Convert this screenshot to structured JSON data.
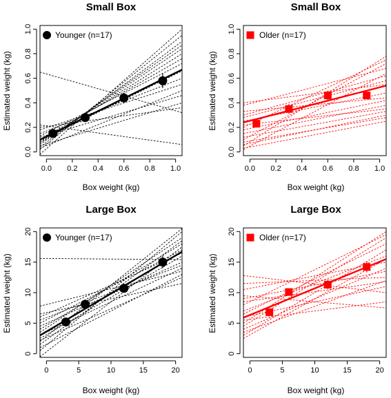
{
  "chart_data": [
    {
      "type": "scatter",
      "title": "Small Box",
      "xlabel": "Box weight (kg)",
      "ylabel": "Estimated weight (kg)",
      "xlim": [
        -0.05,
        1.05
      ],
      "ylim": [
        -0.03,
        1.03
      ],
      "xticks": [
        "0.0",
        "0.2",
        "0.4",
        "0.6",
        "0.8",
        "1.0"
      ],
      "yticks": [
        "0.0",
        "0.2",
        "0.4",
        "0.6",
        "0.8",
        "1.0"
      ],
      "xtick_values": [
        0,
        0.2,
        0.4,
        0.6,
        0.8,
        1.0
      ],
      "ytick_values": [
        0,
        0.2,
        0.4,
        0.6,
        0.8,
        1.0
      ],
      "color": "#000000",
      "marker": "circle",
      "legend": "Younger (n=17)",
      "legend_position": "top-left",
      "series": [
        {
          "name": "Younger (n=17)",
          "x": [
            0.05,
            0.3,
            0.6,
            0.9
          ],
          "y": [
            0.15,
            0.28,
            0.44,
            0.58
          ],
          "err": [
            0.03,
            0.03,
            0.04,
            0.06
          ]
        }
      ],
      "fit": [
        [
          -0.05,
          0.1
        ],
        [
          1.05,
          0.67
        ]
      ],
      "individual_fits": [
        [
          [
            -0.05,
            0.65
          ],
          [
            1.05,
            0.32
          ]
        ],
        [
          [
            -0.05,
            0.22
          ],
          [
            1.05,
            0.06
          ]
        ],
        [
          [
            -0.05,
            0.12
          ],
          [
            1.05,
            0.46
          ]
        ],
        [
          [
            -0.05,
            0.2
          ],
          [
            1.05,
            0.36
          ]
        ],
        [
          [
            -0.05,
            0.05
          ],
          [
            1.05,
            0.4
          ]
        ],
        [
          [
            -0.05,
            0.02
          ],
          [
            1.05,
            0.95
          ]
        ],
        [
          [
            -0.05,
            -0.02
          ],
          [
            1.05,
            1.0
          ]
        ],
        [
          [
            -0.05,
            0.06
          ],
          [
            1.05,
            0.87
          ]
        ],
        [
          [
            -0.05,
            0.08
          ],
          [
            1.05,
            0.8
          ]
        ],
        [
          [
            -0.05,
            0.1
          ],
          [
            1.05,
            0.76
          ]
        ],
        [
          [
            -0.05,
            0.04
          ],
          [
            1.05,
            0.9
          ]
        ],
        [
          [
            -0.05,
            0.13
          ],
          [
            1.05,
            0.72
          ]
        ],
        [
          [
            -0.05,
            0.15
          ],
          [
            1.05,
            0.6
          ]
        ],
        [
          [
            -0.05,
            0.07
          ],
          [
            1.05,
            0.84
          ]
        ],
        [
          [
            -0.05,
            0.18
          ],
          [
            1.05,
            0.55
          ]
        ],
        [
          [
            -0.05,
            0.09
          ],
          [
            1.05,
            0.66
          ]
        ],
        [
          [
            -0.05,
            0.03
          ],
          [
            1.05,
            0.5
          ]
        ]
      ]
    },
    {
      "type": "scatter",
      "title": "Small Box",
      "xlabel": "Box weight (kg)",
      "ylabel": "Estimated weight (kg)",
      "xlim": [
        -0.05,
        1.05
      ],
      "ylim": [
        -0.03,
        1.03
      ],
      "xticks": [
        "0.0",
        "0.2",
        "0.4",
        "0.6",
        "0.8",
        "1.0"
      ],
      "yticks": [
        "0.0",
        "0.2",
        "0.4",
        "0.6",
        "0.8",
        "1.0"
      ],
      "xtick_values": [
        0,
        0.2,
        0.4,
        0.6,
        0.8,
        1.0
      ],
      "ytick_values": [
        0,
        0.2,
        0.4,
        0.6,
        0.8,
        1.0
      ],
      "color": "#ff0000",
      "marker": "square",
      "legend": "Older (n=17)",
      "legend_position": "top-left",
      "series": [
        {
          "name": "Older (n=17)",
          "x": [
            0.05,
            0.3,
            0.6,
            0.9
          ],
          "y": [
            0.23,
            0.35,
            0.46,
            0.46
          ],
          "err": [
            0.03,
            0.04,
            0.04,
            0.03
          ]
        }
      ],
      "fit": [
        [
          -0.05,
          0.24
        ],
        [
          1.05,
          0.54
        ]
      ],
      "individual_fits": [
        [
          [
            -0.05,
            0.05
          ],
          [
            1.05,
            0.78
          ]
        ],
        [
          [
            -0.05,
            0.1
          ],
          [
            1.05,
            0.72
          ]
        ],
        [
          [
            -0.05,
            0.02
          ],
          [
            1.05,
            0.64
          ]
        ],
        [
          [
            -0.05,
            0.2
          ],
          [
            1.05,
            0.75
          ]
        ],
        [
          [
            -0.05,
            0.3
          ],
          [
            1.05,
            0.62
          ]
        ],
        [
          [
            -0.05,
            0.38
          ],
          [
            1.05,
            0.68
          ]
        ],
        [
          [
            -0.05,
            0.4
          ],
          [
            1.05,
            0.55
          ]
        ],
        [
          [
            -0.05,
            0.15
          ],
          [
            1.05,
            0.38
          ]
        ],
        [
          [
            -0.05,
            0.12
          ],
          [
            1.05,
            0.33
          ]
        ],
        [
          [
            -0.05,
            0.18
          ],
          [
            1.05,
            0.42
          ]
        ],
        [
          [
            -0.05,
            0.22
          ],
          [
            1.05,
            0.35
          ]
        ],
        [
          [
            -0.05,
            0.08
          ],
          [
            1.05,
            0.28
          ]
        ],
        [
          [
            -0.05,
            0.25
          ],
          [
            1.05,
            0.48
          ]
        ],
        [
          [
            -0.05,
            0.06
          ],
          [
            1.05,
            0.3
          ]
        ],
        [
          [
            -0.05,
            0.28
          ],
          [
            1.05,
            0.58
          ]
        ],
        [
          [
            -0.05,
            0.03
          ],
          [
            1.05,
            0.25
          ]
        ],
        [
          [
            -0.05,
            0.33
          ],
          [
            1.05,
            0.44
          ]
        ]
      ]
    },
    {
      "type": "scatter",
      "title": "Large Box",
      "xlabel": "Box weight (kg)",
      "ylabel": "Estimated weight (kg)",
      "xlim": [
        -1,
        21
      ],
      "ylim": [
        -0.6,
        20.6
      ],
      "xticks": [
        "0",
        "5",
        "10",
        "15",
        "20"
      ],
      "yticks": [
        "0",
        "5",
        "10",
        "15",
        "20"
      ],
      "xtick_values": [
        0,
        5,
        10,
        15,
        20
      ],
      "ytick_values": [
        0,
        5,
        10,
        15,
        20
      ],
      "color": "#000000",
      "marker": "circle",
      "legend": "Younger (n=17)",
      "legend_position": "top-left",
      "series": [
        {
          "name": "Younger (n=17)",
          "x": [
            3,
            6,
            12,
            18
          ],
          "y": [
            5.2,
            8.1,
            10.7,
            15.0
          ],
          "err": [
            0.4,
            0.6,
            0.7,
            1.0
          ]
        }
      ],
      "fit": [
        [
          -1,
          3.0
        ],
        [
          21,
          16.7
        ]
      ],
      "individual_fits": [
        [
          [
            -1,
            15.6
          ],
          [
            21,
            15.4
          ]
        ],
        [
          [
            -1,
            7.8
          ],
          [
            21,
            13.5
          ]
        ],
        [
          [
            -1,
            6.5
          ],
          [
            21,
            11.5
          ]
        ],
        [
          [
            -1,
            5.5
          ],
          [
            21,
            14.5
          ]
        ],
        [
          [
            -1,
            4.0
          ],
          [
            21,
            18.0
          ]
        ],
        [
          [
            -1,
            2.0
          ],
          [
            21,
            20.5
          ]
        ],
        [
          [
            -1,
            0.5
          ],
          [
            21,
            20.0
          ]
        ],
        [
          [
            -1,
            -0.5
          ],
          [
            21,
            17.5
          ]
        ],
        [
          [
            -1,
            3.5
          ],
          [
            21,
            19.0
          ]
        ],
        [
          [
            -1,
            2.5
          ],
          [
            21,
            16.0
          ]
        ],
        [
          [
            -1,
            4.5
          ],
          [
            21,
            15.0
          ]
        ],
        [
          [
            -1,
            1.5
          ],
          [
            21,
            18.5
          ]
        ],
        [
          [
            -1,
            5.0
          ],
          [
            21,
            17.0
          ]
        ],
        [
          [
            -1,
            3.0
          ],
          [
            21,
            14.0
          ]
        ],
        [
          [
            -1,
            1.0
          ],
          [
            21,
            13.0
          ]
        ],
        [
          [
            -1,
            6.0
          ],
          [
            21,
            16.5
          ]
        ],
        [
          [
            -1,
            2.2
          ],
          [
            21,
            12.5
          ]
        ]
      ]
    },
    {
      "type": "scatter",
      "title": "Large Box",
      "xlabel": "Box weight (kg)",
      "ylabel": "Estimated weight (kg)",
      "xlim": [
        -1,
        21
      ],
      "ylim": [
        -0.6,
        20.6
      ],
      "xticks": [
        "0",
        "5",
        "10",
        "15",
        "20"
      ],
      "yticks": [
        "0",
        "5",
        "10",
        "15",
        "20"
      ],
      "xtick_values": [
        0,
        5,
        10,
        15,
        20
      ],
      "ytick_values": [
        0,
        5,
        10,
        15,
        20
      ],
      "color": "#ff0000",
      "marker": "square",
      "legend": "Older (n=17)",
      "legend_position": "top-left",
      "series": [
        {
          "name": "Older (n=17)",
          "x": [
            3,
            6,
            12,
            18
          ],
          "y": [
            6.8,
            10.1,
            11.3,
            14.2
          ],
          "err": [
            0.4,
            0.6,
            0.7,
            0.9
          ]
        }
      ],
      "fit": [
        [
          -1,
          5.9
        ],
        [
          21,
          15.5
        ]
      ],
      "individual_fits": [
        [
          [
            -1,
            12.8
          ],
          [
            21,
            10.0
          ]
        ],
        [
          [
            -1,
            11.5
          ],
          [
            21,
            12.5
          ]
        ],
        [
          [
            -1,
            9.5
          ],
          [
            21,
            7.5
          ]
        ],
        [
          [
            -1,
            8.0
          ],
          [
            21,
            19.5
          ]
        ],
        [
          [
            -1,
            6.5
          ],
          [
            21,
            18.0
          ]
        ],
        [
          [
            -1,
            5.0
          ],
          [
            21,
            20.0
          ]
        ],
        [
          [
            -1,
            3.0
          ],
          [
            21,
            17.0
          ]
        ],
        [
          [
            -1,
            2.5
          ],
          [
            21,
            15.5
          ]
        ],
        [
          [
            -1,
            7.0
          ],
          [
            21,
            16.0
          ]
        ],
        [
          [
            -1,
            4.0
          ],
          [
            21,
            14.0
          ]
        ],
        [
          [
            -1,
            9.0
          ],
          [
            21,
            13.5
          ]
        ],
        [
          [
            -1,
            6.0
          ],
          [
            21,
            11.0
          ]
        ],
        [
          [
            -1,
            3.5
          ],
          [
            21,
            12.0
          ]
        ],
        [
          [
            -1,
            10.5
          ],
          [
            21,
            15.0
          ]
        ],
        [
          [
            -1,
            5.5
          ],
          [
            21,
            8.5
          ]
        ],
        [
          [
            -1,
            8.5
          ],
          [
            21,
            11.8
          ]
        ],
        [
          [
            -1,
            4.5
          ],
          [
            21,
            19.0
          ]
        ]
      ]
    }
  ]
}
